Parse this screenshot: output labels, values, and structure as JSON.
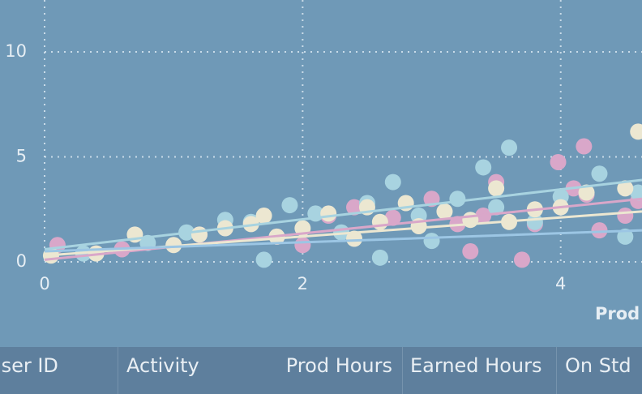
{
  "chart_data": {
    "type": "scatter",
    "x_label": "Prod Hours",
    "xlim": [
      0,
      4.63
    ],
    "ylim": [
      0,
      12.47
    ],
    "xticks": [
      0,
      2,
      4
    ],
    "yticks": [
      0,
      5,
      10
    ],
    "grid": true,
    "series": [
      {
        "color": "#d9a7c9",
        "x": [
          0.1,
          0.6,
          1.2,
          1.8,
          2.2,
          2.4,
          2.7,
          3.0,
          3.2,
          3.3,
          3.5,
          3.7,
          3.8,
          3.98,
          4.1,
          4.2,
          4.3,
          4.18,
          4.5,
          4.6,
          2.0,
          3.4
        ],
        "values": [
          0.8,
          0.6,
          1.3,
          1.2,
          2.2,
          2.6,
          2.1,
          3.0,
          1.8,
          0.5,
          3.8,
          0.1,
          1.8,
          4.75,
          3.5,
          3.2,
          1.5,
          5.5,
          2.2,
          2.9,
          0.8,
          2.2
        ]
      },
      {
        "color": "#a8d3e0",
        "x": [
          0.3,
          0.8,
          1.1,
          1.4,
          1.6,
          1.9,
          2.1,
          2.3,
          2.5,
          2.7,
          2.9,
          3.0,
          3.2,
          3.4,
          3.5,
          3.6,
          3.8,
          4.0,
          4.3,
          4.5,
          4.6,
          1.7,
          2.6
        ],
        "values": [
          0.4,
          0.9,
          1.4,
          2.0,
          1.9,
          2.7,
          2.3,
          1.4,
          2.8,
          3.8,
          2.2,
          1.0,
          3.0,
          4.5,
          2.6,
          5.44,
          1.9,
          3.1,
          4.2,
          1.2,
          3.3,
          0.1,
          0.2
        ]
      },
      {
        "color": "#ece7d1",
        "x": [
          0.05,
          0.4,
          0.7,
          1.0,
          1.2,
          1.4,
          1.6,
          1.7,
          1.8,
          2.0,
          2.2,
          2.4,
          2.5,
          2.6,
          2.8,
          2.9,
          3.1,
          3.3,
          3.5,
          3.6,
          3.8,
          4.0,
          4.2,
          4.5,
          4.6
        ],
        "values": [
          0.3,
          0.4,
          1.3,
          0.8,
          1.3,
          1.6,
          1.8,
          2.2,
          1.2,
          1.6,
          2.3,
          1.1,
          2.6,
          1.9,
          2.8,
          1.7,
          2.4,
          2.0,
          3.5,
          1.9,
          2.5,
          2.6,
          3.3,
          3.5,
          6.2
        ]
      }
    ],
    "trend_lines": [
      {
        "color": "#d9a7c9",
        "x": [
          0,
          4.63
        ],
        "values": [
          0.1,
          3.0
        ]
      },
      {
        "color": "#a8d3e0",
        "x": [
          0,
          4.63
        ],
        "values": [
          0.6,
          3.9
        ]
      },
      {
        "color": "#ece7d1",
        "x": [
          0,
          4.63
        ],
        "values": [
          0.3,
          2.4
        ]
      },
      {
        "color": "#9cc6e4",
        "x": [
          0,
          4.63
        ],
        "values": [
          0.5,
          1.5
        ]
      }
    ]
  },
  "table": {
    "columns": [
      "User ID",
      "Activity",
      "Prod Hours",
      "Earned Hours",
      "On Std"
    ]
  }
}
